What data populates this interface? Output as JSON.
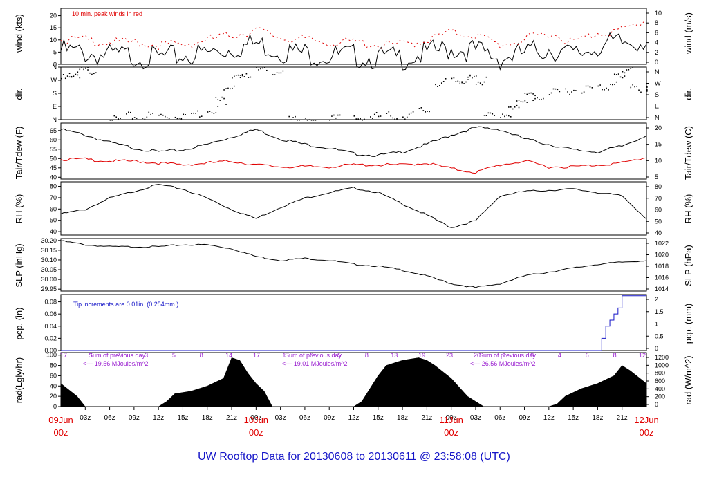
{
  "title": "UW Rooftop Data for 20130608  to  20130611 @ 23:58:08  (UTC)",
  "colors": {
    "primary": "#000000",
    "peak": "#e00000",
    "dew": "#e00000",
    "pcp": "#1515c8",
    "note": "#9a1fd0",
    "title": "#1515c8"
  },
  "x_axis": {
    "hours_ticks": [
      "03z",
      "06z",
      "09z",
      "12z",
      "15z",
      "18z",
      "21z",
      "00z",
      "03z",
      "06z",
      "09z",
      "12z",
      "15z",
      "18z",
      "21z",
      "00z",
      "03z",
      "06z",
      "09z",
      "12z",
      "15z",
      "18z",
      "21z"
    ],
    "day_labels": [
      {
        "date": "09Jun",
        "time": "00z"
      },
      {
        "date": "10Jun",
        "time": "00z"
      },
      {
        "date": "11Jun",
        "time": "00z"
      },
      {
        "date": "12Jun",
        "time": "00z"
      }
    ]
  },
  "chart_data": [
    {
      "id": "wind",
      "type": "line",
      "ylabel": "wind (kts)",
      "ylabel_right": "wind (m/s)",
      "ylim": [
        0,
        23
      ],
      "yticks": [
        0,
        5,
        10,
        15,
        20
      ],
      "right_ticks": [
        "0",
        "2",
        "4",
        "6",
        "8",
        "10"
      ],
      "annotation": "10 min. peak winds in red",
      "series": [
        {
          "role": "wind",
          "x_hours": [
            0,
            3,
            6,
            9,
            12,
            15,
            18,
            21,
            24,
            27,
            30,
            33,
            36,
            39,
            42,
            45,
            48,
            51,
            54,
            57,
            60,
            63,
            66,
            69,
            72
          ],
          "values": [
            8,
            7,
            6,
            6,
            5,
            6,
            7,
            9,
            11,
            8,
            7,
            6,
            6,
            5,
            5,
            7,
            9,
            8,
            5,
            7,
            9,
            6,
            10,
            11,
            13
          ]
        },
        {
          "role": "peak",
          "x_hours": [
            0,
            3,
            6,
            9,
            12,
            15,
            18,
            21,
            24,
            27,
            30,
            33,
            36,
            39,
            42,
            45,
            48,
            51,
            54,
            57,
            60,
            63,
            66,
            69,
            72
          ],
          "values": [
            11,
            11,
            10,
            10,
            9,
            9,
            11,
            13,
            15,
            12,
            11,
            10,
            10,
            9,
            9,
            11,
            14,
            13,
            9,
            11,
            14,
            10,
            14,
            15,
            19
          ]
        }
      ]
    },
    {
      "id": "dir",
      "type": "scatter",
      "ylabel": "dir.",
      "ylabel_right": "dir.",
      "ylim": [
        0,
        360
      ],
      "ytick_labels": [
        "N",
        "E",
        "S",
        "W",
        "N"
      ],
      "right_ticks": [
        "N",
        "E",
        "S",
        "W",
        "N"
      ],
      "series": [
        {
          "x_hours": [
            0,
            1,
            2,
            3,
            6,
            8,
            10,
            12,
            14,
            16,
            18,
            19,
            20,
            21,
            22,
            24,
            26,
            28,
            30,
            33,
            36,
            38,
            40,
            42,
            44,
            46,
            48,
            49,
            50,
            51,
            52,
            54,
            55,
            56,
            57,
            58,
            60,
            62,
            64,
            66,
            67,
            68,
            69,
            70,
            72
          ],
          "values": [
            300,
            330,
            350,
            355,
            15,
            40,
            45,
            45,
            50,
            60,
            90,
            150,
            250,
            300,
            335,
            350,
            355,
            10,
            20,
            25,
            30,
            40,
            45,
            50,
            80,
            270,
            280,
            290,
            300,
            280,
            40,
            60,
            90,
            160,
            180,
            170,
            200,
            220,
            230,
            240,
            250,
            320,
            360,
            230,
            230
          ]
        }
      ]
    },
    {
      "id": "temp",
      "type": "line",
      "ylabel": "Tair/Tdew (F)",
      "ylabel_right": "Tair/Tdew (C)",
      "ylim": [
        39,
        69
      ],
      "yticks": [
        40,
        45,
        50,
        55,
        60,
        65
      ],
      "right_ticks": [
        "5",
        "10",
        "15",
        "20"
      ],
      "series": [
        {
          "role": "Tair",
          "x_hours": [
            0,
            3,
            6,
            9,
            12,
            15,
            18,
            21,
            24,
            27,
            30,
            33,
            36,
            39,
            42,
            45,
            48,
            51,
            54,
            57,
            60,
            63,
            66,
            69,
            72
          ],
          "values": [
            66,
            63,
            59,
            56,
            54,
            55,
            58,
            62,
            66,
            61,
            58,
            56,
            53,
            52,
            54,
            58,
            63,
            67,
            66,
            61,
            58,
            55,
            54,
            57,
            63
          ]
        },
        {
          "role": "Tdew",
          "x_hours": [
            0,
            3,
            6,
            9,
            12,
            15,
            18,
            21,
            24,
            27,
            30,
            33,
            36,
            39,
            42,
            45,
            48,
            51,
            54,
            57,
            60,
            63,
            66,
            69,
            72
          ],
          "values": [
            50,
            50,
            49,
            49,
            48,
            47,
            48,
            49,
            47,
            46,
            46,
            46,
            47,
            47,
            47,
            48,
            45,
            43,
            47,
            49,
            46,
            46,
            47,
            48,
            51
          ]
        }
      ]
    },
    {
      "id": "rh",
      "type": "line",
      "ylabel": "RH (%)",
      "ylabel_right": "RH (%)",
      "ylim": [
        37,
        84
      ],
      "yticks": [
        40,
        50,
        60,
        70,
        80
      ],
      "right_ticks": [
        "40",
        "50",
        "60",
        "70",
        "80"
      ],
      "series": [
        {
          "x_hours": [
            0,
            3,
            6,
            9,
            12,
            15,
            18,
            21,
            24,
            27,
            30,
            33,
            36,
            39,
            42,
            45,
            48,
            51,
            54,
            57,
            60,
            63,
            66,
            69,
            72
          ],
          "values": [
            56,
            60,
            70,
            76,
            82,
            78,
            70,
            60,
            52,
            62,
            70,
            75,
            79,
            75,
            65,
            55,
            44,
            50,
            72,
            76,
            77,
            78,
            75,
            72,
            52
          ]
        }
      ]
    },
    {
      "id": "slp",
      "type": "line",
      "ylabel": "SLP (inHg)",
      "ylabel_right": "SLP (hPa)",
      "ylim": [
        29.94,
        30.21
      ],
      "yticks": [
        29.95,
        30.0,
        30.05,
        30.1,
        30.15,
        30.2
      ],
      "right_ticks": [
        "1014",
        "1016",
        "1018",
        "1020",
        "1022"
      ],
      "series": [
        {
          "x_hours": [
            0,
            3,
            6,
            9,
            12,
            15,
            18,
            21,
            24,
            27,
            30,
            33,
            36,
            39,
            42,
            45,
            48,
            51,
            54,
            57,
            60,
            63,
            66,
            69,
            72
          ],
          "values": [
            30.2,
            30.18,
            30.17,
            30.17,
            30.17,
            30.18,
            30.18,
            30.16,
            30.12,
            30.1,
            30.11,
            30.1,
            30.08,
            30.07,
            30.05,
            30.02,
            29.98,
            29.96,
            29.98,
            30.02,
            30.04,
            30.06,
            30.08,
            30.09,
            30.1
          ]
        }
      ]
    },
    {
      "id": "pcp",
      "type": "line",
      "ylabel": "pcp. (in)",
      "ylabel_right": "pcp. (mm)",
      "ylim": [
        0,
        0.092
      ],
      "yticks": [
        0.0,
        0.02,
        0.04,
        0.06,
        0.08
      ],
      "right_ticks": [
        "0",
        "0.5",
        "1",
        "1.5",
        "2"
      ],
      "annotation": "Tip increments are 0.01in. (0.254mm.)",
      "series": [
        {
          "x_hours": [
            0,
            66,
            66.5,
            67,
            67.5,
            68,
            68.5,
            69,
            70,
            72
          ],
          "values": [
            0,
            0,
            0.02,
            0.04,
            0.05,
            0.06,
            0.07,
            0.09,
            0.09,
            0.09
          ]
        }
      ]
    },
    {
      "id": "rad",
      "type": "area",
      "ylabel": "rad(Lgly/hr)",
      "ylabel_right": "rad (W/m^2)",
      "ylim": [
        0,
        105
      ],
      "yticks": [
        0,
        20,
        40,
        60,
        80,
        100
      ],
      "right_ticks": [
        "0",
        "200",
        "400",
        "600",
        "800",
        "1000",
        "1200"
      ],
      "annotations": [
        {
          "line1": "Sum of previous day",
          "line2": "<--- 19.56 MJoules/m^2"
        },
        {
          "line1": "Sum of previous day",
          "line2": "<--- 19.01 MJoules/m^2"
        },
        {
          "line1": "Sum of previous day",
          "line2": "<--- 26.56 MJoules/m^2"
        }
      ],
      "top_numbers": [
        "17",
        "1",
        "2",
        "3",
        "5",
        "8",
        "14",
        "17",
        "1",
        "3",
        "5",
        "8",
        "13",
        "19",
        "23",
        "26",
        "1",
        "3",
        "4",
        "6",
        "8",
        "12"
      ],
      "series": [
        {
          "x_hours": [
            0,
            2,
            3,
            12,
            13,
            14,
            16,
            18,
            20,
            21,
            22,
            23,
            24,
            25,
            26,
            36,
            37,
            38,
            39,
            40,
            42,
            44,
            45,
            46,
            48,
            50,
            51,
            52,
            60,
            61,
            62,
            64,
            66,
            68,
            69,
            70,
            72
          ],
          "values": [
            45,
            20,
            0,
            0,
            10,
            25,
            30,
            40,
            55,
            95,
            90,
            65,
            45,
            30,
            0,
            0,
            10,
            35,
            60,
            80,
            90,
            95,
            90,
            80,
            55,
            20,
            10,
            0,
            0,
            5,
            20,
            35,
            45,
            60,
            80,
            70,
            45
          ]
        }
      ]
    }
  ]
}
